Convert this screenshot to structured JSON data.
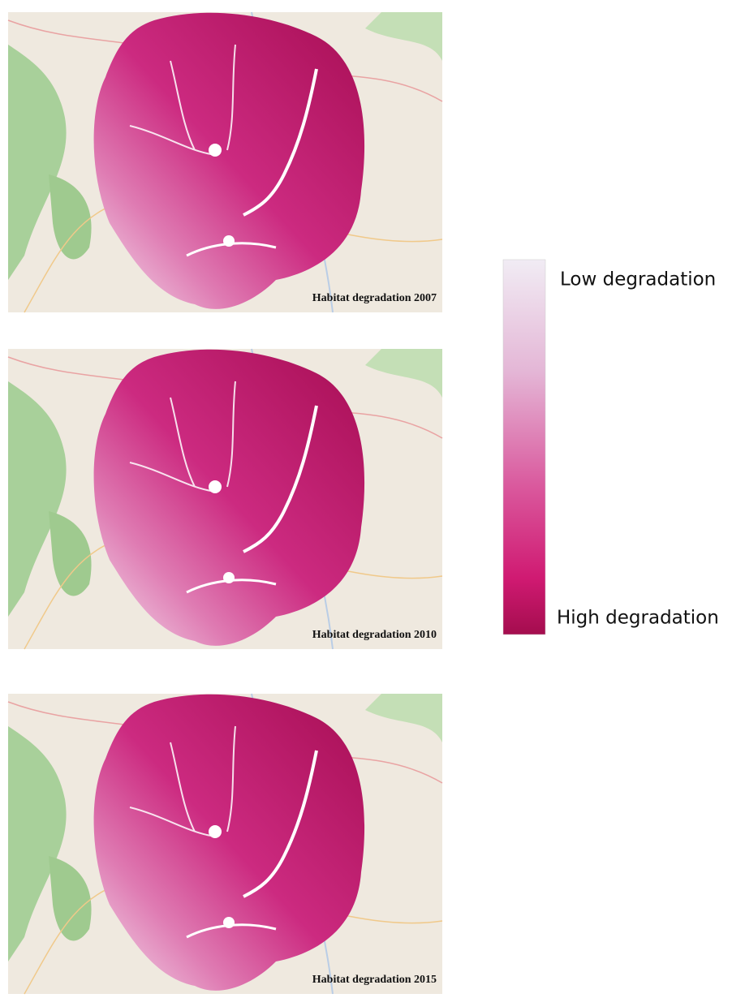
{
  "maps": [
    {
      "label": "Habitat degradation 2007"
    },
    {
      "label": "Habitat degradation 2010"
    },
    {
      "label": "Habitat degradation 2015"
    }
  ],
  "legend": {
    "low_label": "Low degradation",
    "high_label": "High degradation"
  }
}
